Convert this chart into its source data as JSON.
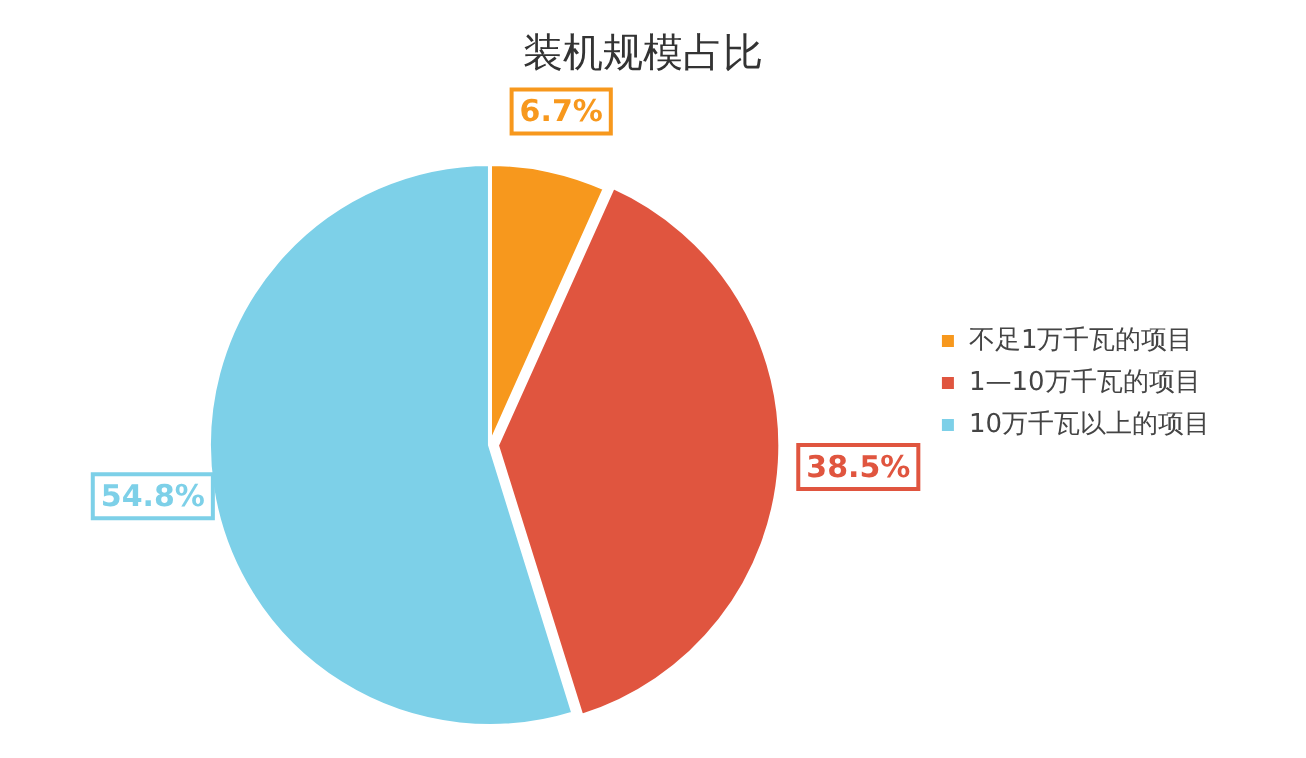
{
  "chart_data": {
    "type": "pie",
    "title": "装机规模占比",
    "categories": [
      "不足1万千瓦的项目",
      "1—10万千瓦的项目",
      "10万千瓦以上的项目"
    ],
    "values": [
      6.7,
      38.5,
      54.8
    ],
    "colors": [
      "#f7981d",
      "#e0553f",
      "#7dd0e8"
    ],
    "value_labels": [
      "6.7%",
      "38.5%",
      "54.8%"
    ],
    "legend": "right"
  }
}
